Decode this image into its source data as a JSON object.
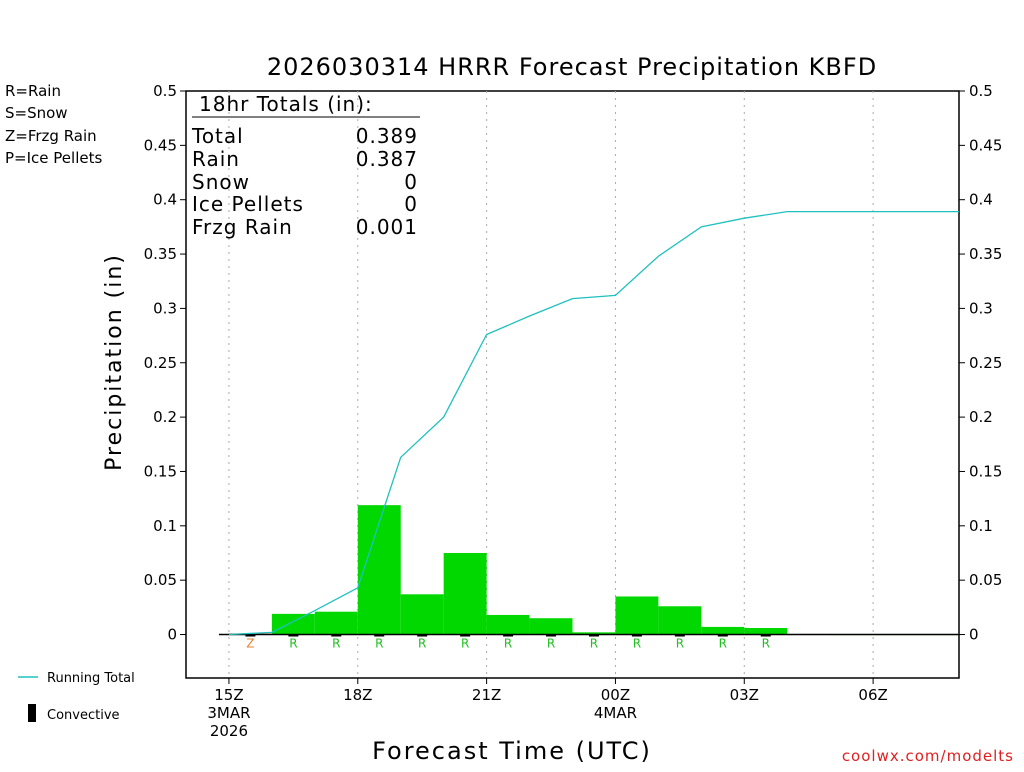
{
  "chart_data": {
    "type": "bar",
    "title": "2026030314 HRRR Forecast Precipitation KBFD",
    "xlabel": "Forecast Time (UTC)",
    "ylabel": "Precipitation (in)",
    "ylim": [
      -0.04,
      0.5
    ],
    "yticks": [
      0,
      0.05,
      0.1,
      0.15,
      0.2,
      0.25,
      0.3,
      0.35,
      0.4,
      0.45,
      0.5
    ],
    "ytick_labels": [
      "0",
      "0.05",
      "0.1",
      "0.15",
      "0.2",
      "0.25",
      "0.3",
      "0.35",
      "0.4",
      "0.45",
      "0.5"
    ],
    "xlim_hours": [
      -1,
      17
    ],
    "x_ticks": [
      {
        "hour": 0,
        "lines": [
          "15Z",
          "3MAR",
          "2026"
        ]
      },
      {
        "hour": 3,
        "lines": [
          "18Z"
        ]
      },
      {
        "hour": 6,
        "lines": [
          "21Z"
        ]
      },
      {
        "hour": 9,
        "lines": [
          "00Z",
          "4MAR"
        ]
      },
      {
        "hour": 12,
        "lines": [
          "03Z"
        ]
      },
      {
        "hour": 15,
        "lines": [
          "06Z"
        ]
      }
    ],
    "hours": [
      1,
      2,
      3,
      4,
      5,
      6,
      7,
      8,
      9,
      10,
      11,
      12,
      13,
      14,
      15,
      16,
      17
    ],
    "hourly_precip": [
      0.001,
      0.019,
      0.021,
      0.119,
      0.037,
      0.075,
      0.018,
      0.015,
      0.002,
      0.035,
      0.026,
      0.007,
      0.006,
      0.0005,
      0.0,
      0.0,
      0.0
    ],
    "ptype_codes": [
      "Z",
      "R",
      "R",
      "R",
      "R",
      "R",
      "R",
      "R",
      "R",
      "R",
      "R",
      "R",
      "R",
      "",
      "",
      "",
      ""
    ],
    "series": [
      {
        "name": "Running Total",
        "x_hours": [
          0,
          1,
          2,
          3,
          4,
          5,
          6,
          7,
          8,
          9,
          10,
          11,
          12,
          13,
          14,
          15,
          16,
          17
        ],
        "values": [
          0.0,
          0.002,
          0.022,
          0.043,
          0.163,
          0.2,
          0.276,
          0.293,
          0.309,
          0.312,
          0.348,
          0.375,
          0.383,
          0.389,
          0.389,
          0.389,
          0.389,
          0.389
        ]
      }
    ],
    "colors": {
      "rain": "#00d800",
      "frzg": "#f08030",
      "running_total": "#20c0c0",
      "convective": "#000000"
    }
  },
  "legend": {
    "rain": {
      "label": "R=Rain",
      "color": "#20d020"
    },
    "snow": {
      "label": "S=Snow",
      "color": "#3050e0"
    },
    "frzg": {
      "label": "Z=Frzg Rain",
      "color": "#f08030"
    },
    "ice": {
      "label": "P=Ice Pellets",
      "color": "#e03090"
    },
    "running_total": "Running Total",
    "convective": "Convective"
  },
  "totals": {
    "header": "18hr Totals (in):",
    "rows": [
      {
        "label": "Total",
        "value": "0.389"
      },
      {
        "label": "Rain",
        "value": "0.387"
      },
      {
        "label": "Snow",
        "value": "0"
      },
      {
        "label": "Ice Pellets",
        "value": "0"
      },
      {
        "label": "Frzg Rain",
        "value": "0.001"
      }
    ]
  },
  "credit": {
    "text": "coolwx.com/modelts",
    "color": "#e02020"
  }
}
